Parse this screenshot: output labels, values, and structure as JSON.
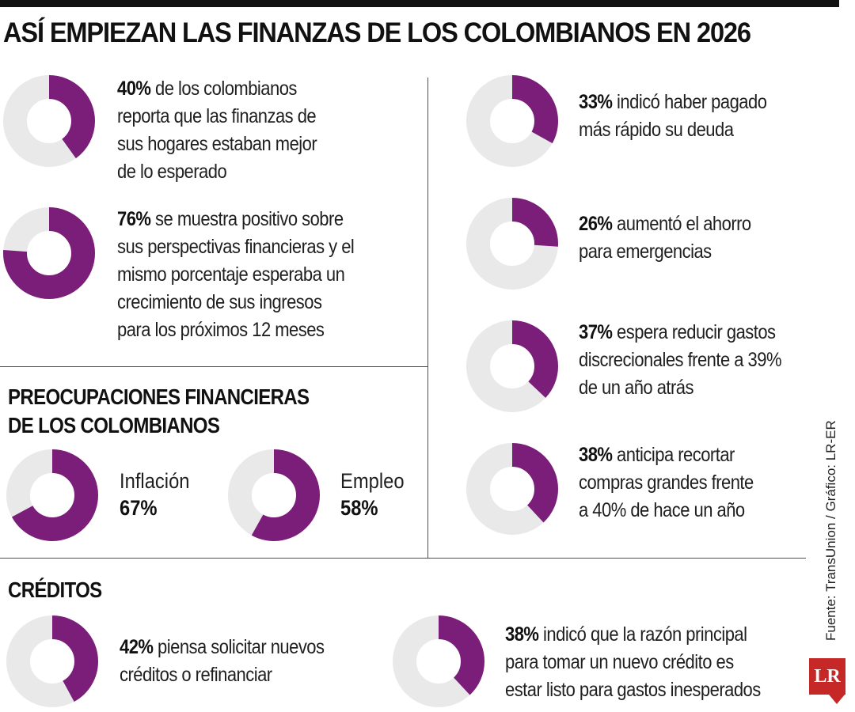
{
  "title": "ASÍ EMPIEZAN LAS FINANZAS DE LOS COLOMBIANOS EN 2026",
  "colors": {
    "accent": "#7b1e7a",
    "track": "#e9e9e9",
    "text": "#1f1f1f",
    "logo": "#c62828"
  },
  "stats_left": [
    {
      "pct": "40%",
      "text": [
        "de los colombianos",
        "reporta que las finanzas de",
        "sus hogares estaban mejor",
        "de lo esperado"
      ]
    },
    {
      "pct": "76%",
      "text": [
        "se muestra positivo sobre",
        "sus perspectivas financieras y el",
        "mismo porcentaje esperaba un",
        "crecimiento de sus ingresos",
        "para los próximos 12 meses"
      ]
    }
  ],
  "stats_right": [
    {
      "pct": "33%",
      "text": [
        "indicó haber pagado",
        "más rápido su deuda"
      ]
    },
    {
      "pct": "26%",
      "text": [
        "aumentó el ahorro",
        "para emergencias"
      ]
    },
    {
      "pct": "37%",
      "text": [
        "espera reducir gastos",
        "discrecionales frente a 39%",
        "de un año atrás"
      ]
    },
    {
      "pct": "38%",
      "text": [
        "anticipa recortar",
        "compras grandes frente",
        "a 40% de hace un año"
      ]
    }
  ],
  "concerns": {
    "title": [
      "PREOCUPACIONES FINANCIERAS",
      "DE LOS COLOMBIANOS"
    ],
    "items": [
      {
        "label": "Inflación",
        "pct": "67%"
      },
      {
        "label": "Empleo",
        "pct": "58%"
      }
    ]
  },
  "credits": {
    "title": "CRÉDITOS",
    "items": [
      {
        "pct": "42%",
        "text": [
          "piensa solicitar nuevos",
          "créditos o refinanciar"
        ]
      },
      {
        "pct": "38%",
        "text": [
          "indicó que la razón principal",
          "para tomar un nuevo crédito es",
          "estar listo para gastos inesperados"
        ]
      }
    ]
  },
  "source": "Fuente: TransUnion / Gráfico: LR-ER",
  "logo": "LR",
  "chart_data": {
    "type": "pie",
    "title": "ASÍ EMPIEZAN LAS FINANZAS DE LOS COLOMBIANOS EN 2026",
    "unit": "%",
    "donuts": [
      {
        "id": "finanzas-mejor",
        "value": 40
      },
      {
        "id": "positivo-perspectivas",
        "value": 76
      },
      {
        "id": "pago-deuda",
        "value": 33
      },
      {
        "id": "ahorro-emergencias",
        "value": 26
      },
      {
        "id": "reducir-gastos",
        "value": 37
      },
      {
        "id": "recortar-compras",
        "value": 38
      },
      {
        "id": "inflacion",
        "value": 67
      },
      {
        "id": "empleo",
        "value": 58
      },
      {
        "id": "nuevos-creditos",
        "value": 42
      },
      {
        "id": "razon-credito",
        "value": 38
      }
    ]
  }
}
